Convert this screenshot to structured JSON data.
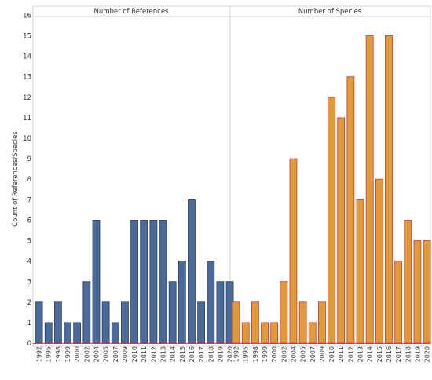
{
  "chart_data": {
    "type": "bar",
    "ylabel": "Count of References/Species",
    "ylim": [
      0,
      16
    ],
    "yticks": [
      0,
      1,
      2,
      3,
      4,
      5,
      6,
      7,
      8,
      9,
      10,
      11,
      12,
      13,
      14,
      15,
      16
    ],
    "grid": false,
    "categories": [
      "1992",
      "1995",
      "1998",
      "1999",
      "2000",
      "2002",
      "2004",
      "2005",
      "2007",
      "2009",
      "2010",
      "2011",
      "2012",
      "2013",
      "2014",
      "2015",
      "2016",
      "2017",
      "2018",
      "2019",
      "2020"
    ],
    "series": [
      {
        "name": "Number of References",
        "values": [
          2,
          1,
          2,
          1,
          1,
          3,
          6,
          2,
          1,
          2,
          6,
          6,
          6,
          6,
          3,
          4,
          7,
          2,
          4,
          3,
          3
        ]
      },
      {
        "name": "Number of Species",
        "values": [
          2,
          1,
          2,
          1,
          1,
          3,
          9,
          2,
          1,
          2,
          12,
          11,
          13,
          7,
          15,
          8,
          15,
          4,
          6,
          5,
          5
        ]
      }
    ],
    "colors": {
      "references_fill": "#4a6a9a",
      "references_edge": "#2f3f5a",
      "species_fill": "#e09a36",
      "species_edge": "#c23a4a",
      "axis": "#cfcfcf"
    }
  }
}
